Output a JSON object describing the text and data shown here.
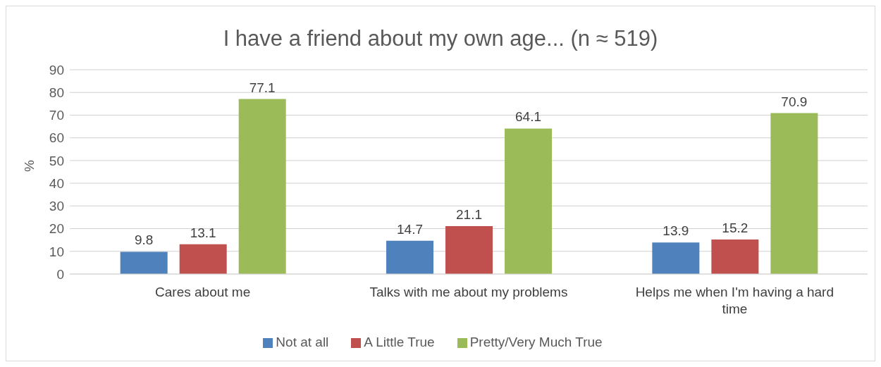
{
  "chart_data": {
    "type": "bar",
    "title": "I have a friend about my own age... (n ≈ 519)",
    "ylabel": "%",
    "categories": [
      "Cares about me",
      "Talks with me about my problems",
      "Helps me when I'm having a hard time"
    ],
    "series": [
      {
        "name": "Not at all",
        "color": "#4f81bd",
        "values": [
          9.8,
          14.7,
          13.9
        ]
      },
      {
        "name": "A Little True",
        "color": "#c0504d",
        "values": [
          13.1,
          21.1,
          15.2
        ]
      },
      {
        "name": "Pretty/Very Much True",
        "color": "#9bbb59",
        "values": [
          77.1,
          64.1,
          70.9
        ]
      }
    ],
    "ylim": [
      0,
      90
    ],
    "yticks": [
      0,
      10,
      20,
      30,
      40,
      50,
      60,
      70,
      80,
      90
    ],
    "grid": "y",
    "legend": "bottom",
    "data_labels": true
  }
}
